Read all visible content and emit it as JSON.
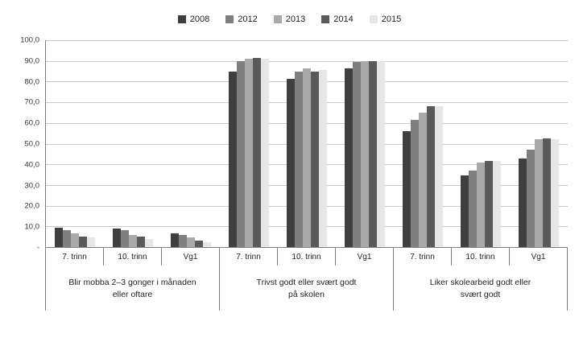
{
  "chart_data": {
    "type": "bar",
    "title": "",
    "xlabel": "",
    "ylabel": "",
    "ylim": [
      0,
      100
    ],
    "y_step": 10,
    "grid": true,
    "legend_position": "top",
    "y_tick_labels": [
      "100,0",
      "90,0",
      "80,0",
      "70,0",
      "60,0",
      "50,0",
      "40,0",
      "30,0",
      "20,0",
      "10,0",
      "-"
    ],
    "group_labels": [
      "Blir mobba 2–3 gonger i månaden\neller oftare",
      "Trivst godt eller svært godt\npå skolen",
      "Liker skolearbeid godt eller\nsvært godt"
    ],
    "subcategories": [
      "7. trinn",
      "10. trinn",
      "Vg1"
    ],
    "categories": [
      "7. trinn",
      "10. trinn",
      "Vg1",
      "7. trinn",
      "10. trinn",
      "Vg1",
      "7. trinn",
      "10. trinn",
      "Vg1"
    ],
    "series": [
      {
        "name": "2008",
        "color": "#3f3f3f",
        "values": [
          9.5,
          9.0,
          6.5,
          85.0,
          81.5,
          86.5,
          56.0,
          34.5,
          43.0
        ]
      },
      {
        "name": "2012",
        "color": "#7f7f7f",
        "values": [
          8.0,
          8.0,
          6.0,
          90.0,
          85.0,
          89.5,
          61.5,
          37.0,
          47.0
        ]
      },
      {
        "name": "2013",
        "color": "#a9a9a9",
        "values": [
          6.5,
          6.0,
          4.5,
          91.0,
          86.5,
          90.0,
          65.0,
          41.0,
          52.0
        ]
      },
      {
        "name": "2014",
        "color": "#5a5a5a",
        "values": [
          5.0,
          5.0,
          3.0,
          91.5,
          85.0,
          90.0,
          68.0,
          41.5,
          52.5
        ]
      },
      {
        "name": "2015",
        "color": "#e6e6e6",
        "values": [
          4.5,
          4.0,
          2.5,
          91.0,
          85.5,
          90.0,
          68.0,
          41.5,
          52.0
        ]
      }
    ]
  }
}
